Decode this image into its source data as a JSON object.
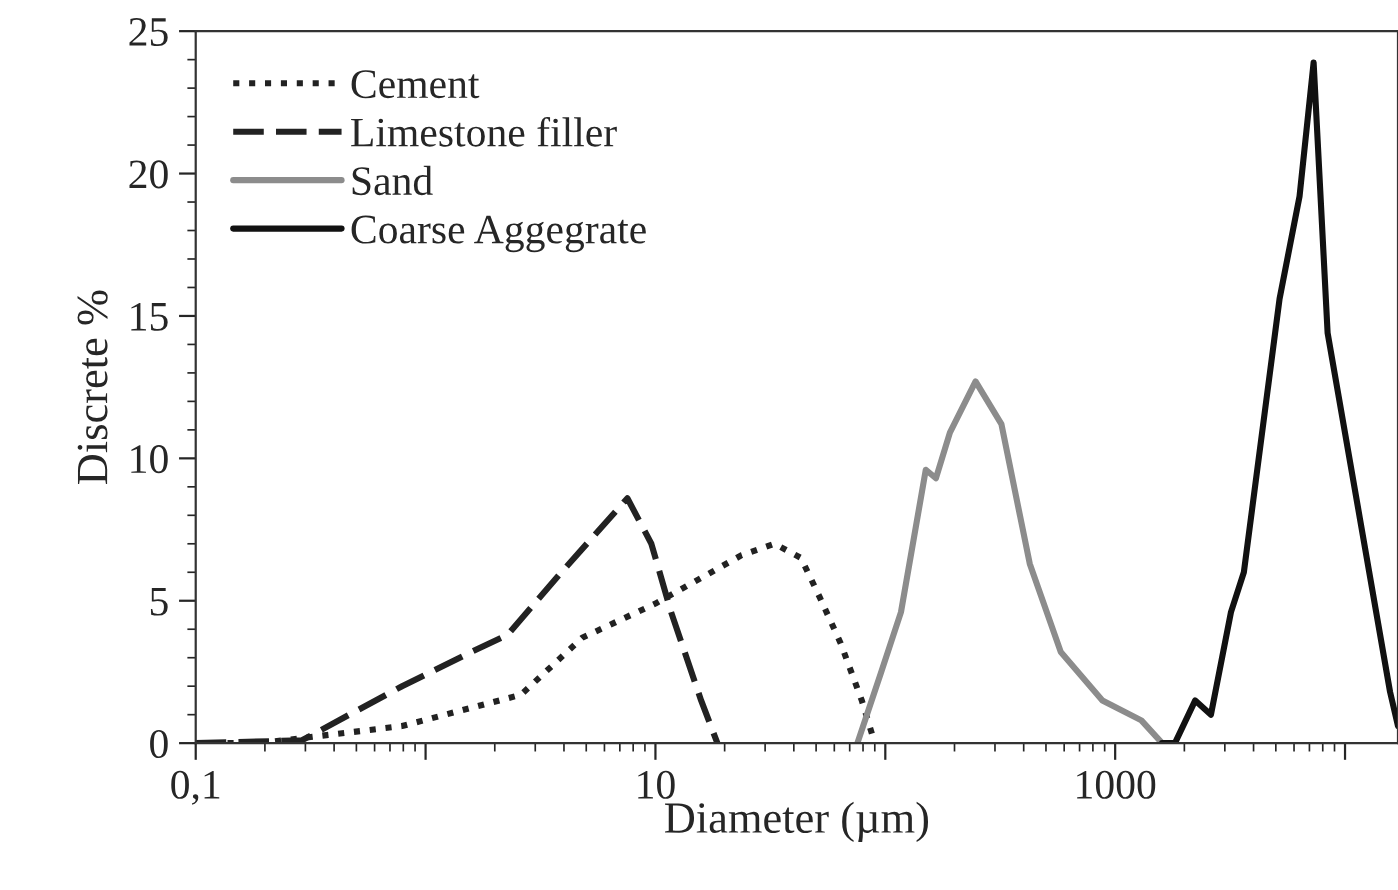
{
  "chart_data": {
    "type": "line",
    "xlabel": "Diameter (µm)",
    "ylabel": "Discrete %",
    "log": "x",
    "xlim": [
      0.1,
      17000
    ],
    "xticks": [
      {
        "value": 0.1,
        "label": "0,1"
      },
      {
        "value": 1,
        "label": null
      },
      10,
      {
        "value": 100,
        "label": null
      },
      1000,
      {
        "value": 10000,
        "label": null
      }
    ],
    "ylim": [
      0,
      25
    ],
    "yticks": [
      0,
      5,
      10,
      15,
      20,
      25
    ],
    "grid": false,
    "legend": "top left",
    "series": [
      {
        "name": "Cement",
        "color": "#222222",
        "line_style": "dotted",
        "x": [
          0.1,
          0.19,
          0.79,
          2.6,
          4.8,
          10,
          15.8,
          23.7,
          33,
          43,
          52,
          64,
          79,
          90
        ],
        "values": [
          0,
          0,
          0.6,
          1.7,
          3.7,
          4.9,
          5.8,
          6.6,
          7.0,
          6.5,
          5.1,
          3.5,
          1.5,
          0
        ]
      },
      {
        "name": "Limestone filler",
        "color": "#222222",
        "line_style": "dashed",
        "x": [
          0.1,
          0.29,
          0.79,
          1.58,
          2.27,
          3.9,
          7.55,
          9.6,
          11.7,
          15.8,
          18.6
        ],
        "values": [
          0,
          0.1,
          2.0,
          3.2,
          3.8,
          6.0,
          8.6,
          7.0,
          4.6,
          1.5,
          0
        ]
      },
      {
        "name": "Sand",
        "color": "#8c8c8c",
        "line_style": "solid",
        "x": [
          75.6,
          96,
          117,
          150,
          166,
          191,
          247,
          320,
          425,
          580,
          880,
          1300,
          1600
        ],
        "values": [
          0,
          2.5,
          4.6,
          9.6,
          9.3,
          10.9,
          12.7,
          11.2,
          6.3,
          3.2,
          1.5,
          0.8,
          0
        ]
      },
      {
        "name": "Coarse Aggegrate",
        "color": "#111111",
        "line_style": "solid",
        "x": [
          1600,
          1820,
          2230,
          2610,
          3190,
          3630,
          5190,
          6340,
          7300,
          8400,
          11600,
          15700,
          17000
        ],
        "values": [
          0,
          0,
          1.5,
          1.0,
          4.6,
          6.0,
          15.6,
          19.2,
          23.9,
          14.4,
          7.9,
          1.8,
          0.6
        ]
      }
    ]
  }
}
